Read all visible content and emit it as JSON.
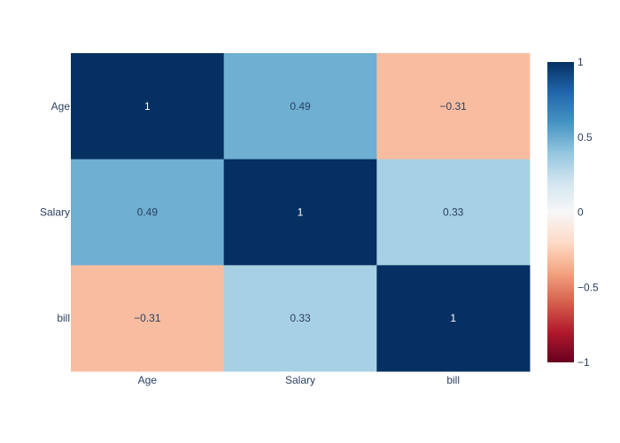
{
  "chart_data": {
    "type": "heatmap",
    "x_categories": [
      "Age",
      "Salary",
      "bill"
    ],
    "y_categories": [
      "Age",
      "Salary",
      "bill"
    ],
    "z": [
      [
        1,
        0.49,
        -0.31
      ],
      [
        0.49,
        1,
        0.33
      ],
      [
        -0.31,
        0.33,
        1
      ]
    ],
    "cell_labels": [
      [
        "1",
        "0.49",
        "−0.31"
      ],
      [
        "0.49",
        "1",
        "0.33"
      ],
      [
        "−0.31",
        "0.33",
        "1"
      ]
    ],
    "zlim": [
      -1,
      1
    ],
    "colorscale": "RdBu",
    "colorbar": {
      "ticks": [
        1,
        0.5,
        0,
        -0.5,
        -1
      ],
      "tick_labels": [
        "1",
        "0.5",
        "0",
        "−0.5",
        "−1"
      ]
    },
    "title": "",
    "xlabel": "",
    "ylabel": ""
  }
}
